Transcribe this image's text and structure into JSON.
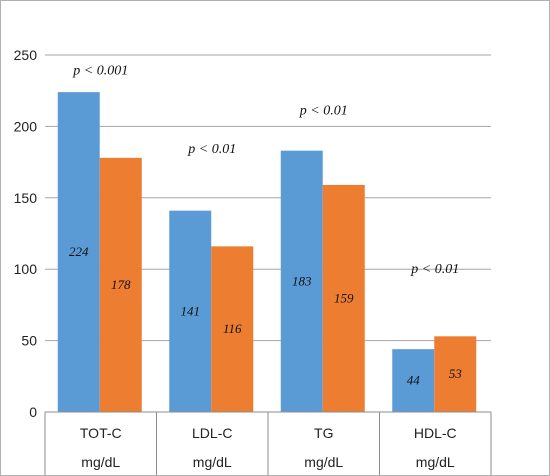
{
  "chart_data": {
    "type": "bar",
    "categories": [
      "TOT-C",
      "LDL-C",
      "TG",
      "HDL-C"
    ],
    "category_units": [
      "mg/dL",
      "mg/dL",
      "mg/dL",
      "mg/dL"
    ],
    "series": [
      {
        "values": [
          224,
          141,
          183,
          44
        ],
        "labels": [
          "224",
          "141",
          "183",
          "44"
        ],
        "color": "#5b9bd5"
      },
      {
        "values": [
          178,
          116,
          159,
          53
        ],
        "labels": [
          "178",
          "116",
          "159",
          "53"
        ],
        "color": "#ed7d31"
      }
    ],
    "ylim": [
      0,
      250
    ],
    "yticks": [
      0,
      50,
      100,
      150,
      200,
      250
    ],
    "grid": true,
    "annotations": [
      {
        "text": "p < 0.001",
        "category": "TOT-C",
        "y": 240
      },
      {
        "text": "p < 0.01",
        "category": "LDL-C",
        "y": 185
      },
      {
        "text": "p < 0.01",
        "category": "TG",
        "y": 212
      },
      {
        "text": "p < 0.01",
        "category": "HDL-C",
        "y": 101
      }
    ]
  }
}
